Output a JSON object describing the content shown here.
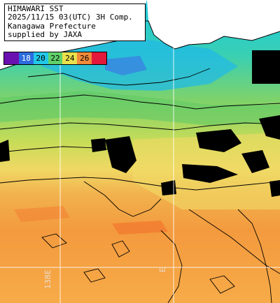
{
  "info": {
    "lines": [
      "HIMAWARI SST",
      "2025/11/15 03(UTC) 3H Comp.",
      "Kanagawa Prefecture",
      "supplied by JAXA"
    ]
  },
  "legend": {
    "stops": [
      {
        "label": "",
        "color": "#6a0fb0"
      },
      {
        "label": "18",
        "color": "#2c6bde"
      },
      {
        "label": "20",
        "color": "#22c7e8"
      },
      {
        "label": "22",
        "color": "#5fd06a"
      },
      {
        "label": "24",
        "color": "#e9e04c"
      },
      {
        "label": "26",
        "color": "#f08a3a"
      },
      {
        "label": "",
        "color": "#e4183a"
      }
    ]
  },
  "map": {
    "lon_labels": [
      "138E",
      "E"
    ],
    "colors": {
      "land": "#ffffff",
      "cloud": "#000000",
      "grid": "#ffffff",
      "contour": "#000000"
    }
  }
}
